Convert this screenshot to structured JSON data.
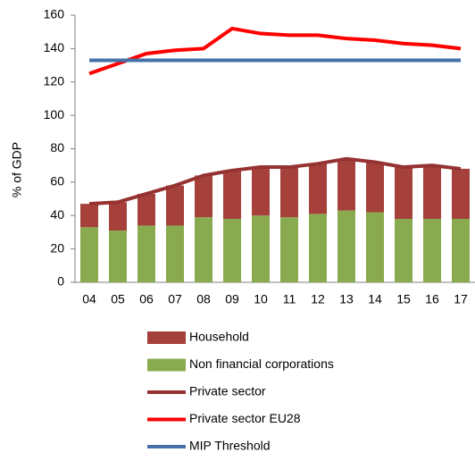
{
  "chart_data": {
    "type": "bar",
    "y_label": "% of GDP",
    "categories": [
      "04",
      "05",
      "06",
      "07",
      "08",
      "09",
      "10",
      "11",
      "12",
      "13",
      "14",
      "15",
      "16",
      "17"
    ],
    "series": [
      {
        "name": "Household",
        "color": "#a5403b",
        "stack": "bar",
        "values": [
          14,
          17,
          19,
          24,
          25,
          29,
          29,
          30,
          30,
          31,
          30,
          31,
          32,
          30
        ]
      },
      {
        "name": "Non financial corporations",
        "color": "#8aaa4f",
        "stack": "bar",
        "values": [
          33,
          31,
          34,
          34,
          39,
          38,
          40,
          39,
          41,
          43,
          42,
          38,
          38,
          38
        ]
      },
      {
        "name": "Private sector",
        "color": "#963232",
        "type": "line",
        "values": [
          47,
          48,
          53,
          58,
          64,
          67,
          69,
          69,
          71,
          74,
          72,
          69,
          70,
          68
        ]
      },
      {
        "name": "Private sector EU28",
        "color": "#ff0000",
        "type": "line",
        "values": [
          125,
          131,
          137,
          139,
          140,
          152,
          149,
          148,
          148,
          146,
          145,
          143,
          142,
          140
        ]
      },
      {
        "name": "MIP Threshold",
        "color": "#4472a8",
        "type": "line",
        "values": [
          133,
          133,
          133,
          133,
          133,
          133,
          133,
          133,
          133,
          133,
          133,
          133,
          133,
          133
        ]
      }
    ],
    "ylim": [
      0,
      160
    ],
    "yticks": [
      0,
      20,
      40,
      60,
      80,
      100,
      120,
      140,
      160
    ]
  }
}
